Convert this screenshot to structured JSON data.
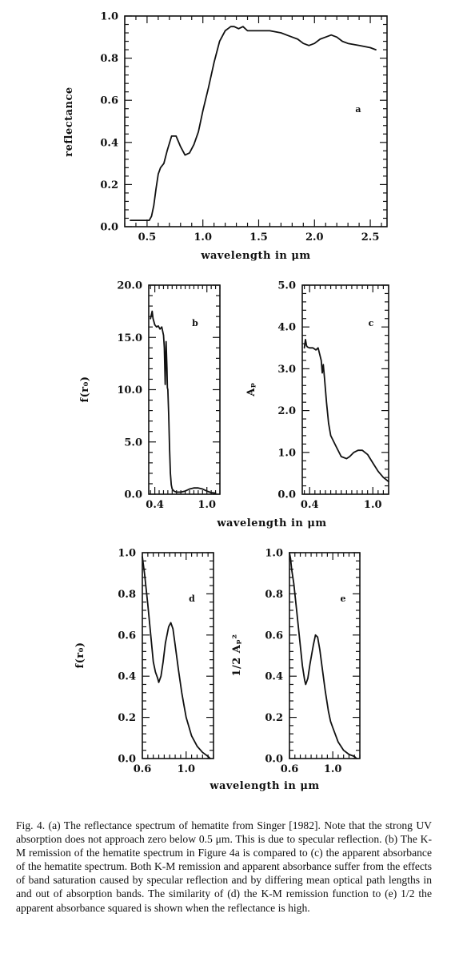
{
  "caption": {
    "text": "Fig. 4.   (a) The reflectance spectrum of hematite from Singer [1982]. Note that the strong UV absorption does not approach zero below 0.5 μm. This is due to specular reflection. (b) The K-M remission of the hematite spectrum in Figure 4a is compared to (c) the apparent absorbance of the hematite spectrum. Both K-M remission and apparent absorbance suffer from the effects of band saturation caused by specular reflection and by differing mean optical path lengths in and out of absorption bands. The similarity of (d) the K-M remission function to (e) 1/2 the apparent absorbance squared is shown when the reflectance is high."
  },
  "chart_data": [
    {
      "id": "a",
      "type": "line",
      "panel_label": "a",
      "xlabel": "wavelength  in  μm",
      "ylabel": "reflectance",
      "xlim": [
        0.3,
        2.65
      ],
      "ylim": [
        0.0,
        1.0
      ],
      "xticks": [
        "0.5",
        "1.0",
        "1.5",
        "2.0",
        "2.5"
      ],
      "yticks": [
        "0.0",
        "0.2",
        "0.4",
        "0.6",
        "0.8",
        "1.0"
      ],
      "series": [
        {
          "x": [
            0.35,
            0.45,
            0.52,
            0.54,
            0.56,
            0.58,
            0.6,
            0.62,
            0.65,
            0.68,
            0.72,
            0.76,
            0.8,
            0.84,
            0.88,
            0.92,
            0.96,
            1.0,
            1.05,
            1.1,
            1.15,
            1.2,
            1.25,
            1.28,
            1.32,
            1.36,
            1.4,
            1.45,
            1.5,
            1.6,
            1.7,
            1.75,
            1.8,
            1.85,
            1.9,
            1.95,
            2.0,
            2.05,
            2.1,
            2.15,
            2.2,
            2.25,
            2.3,
            2.4,
            2.5,
            2.55
          ],
          "y": [
            0.03,
            0.03,
            0.03,
            0.05,
            0.1,
            0.18,
            0.25,
            0.28,
            0.3,
            0.36,
            0.43,
            0.43,
            0.38,
            0.34,
            0.35,
            0.39,
            0.45,
            0.55,
            0.66,
            0.78,
            0.88,
            0.93,
            0.95,
            0.95,
            0.94,
            0.95,
            0.93,
            0.93,
            0.93,
            0.93,
            0.92,
            0.91,
            0.9,
            0.89,
            0.87,
            0.86,
            0.87,
            0.89,
            0.9,
            0.91,
            0.9,
            0.88,
            0.87,
            0.86,
            0.85,
            0.84
          ]
        }
      ]
    },
    {
      "id": "b",
      "type": "line",
      "panel_label": "b",
      "xlabel": "wavelength  in  μm",
      "ylabel": "f(r₀)",
      "xlim": [
        0.33,
        1.15
      ],
      "ylim": [
        0.0,
        20.0
      ],
      "xticks": [
        "0.4",
        "1.0"
      ],
      "yticks": [
        "0.0",
        "5.0",
        "10.0",
        "15.0",
        "20.0"
      ],
      "series": [
        {
          "x": [
            0.35,
            0.37,
            0.38,
            0.4,
            0.42,
            0.44,
            0.46,
            0.48,
            0.5,
            0.51,
            0.52,
            0.53,
            0.54,
            0.545,
            0.55,
            0.56,
            0.57,
            0.58,
            0.59,
            0.6,
            0.62,
            0.65,
            0.7,
            0.75,
            0.8,
            0.85,
            0.9,
            0.95,
            1.0,
            1.05,
            1.1
          ],
          "y": [
            16.8,
            17.5,
            16.8,
            16.2,
            16.0,
            16.1,
            15.8,
            16.0,
            15.2,
            14.0,
            10.5,
            14.6,
            12.0,
            10.2,
            10.0,
            7.5,
            4.5,
            2.0,
            0.9,
            0.5,
            0.3,
            0.2,
            0.2,
            0.3,
            0.5,
            0.6,
            0.6,
            0.5,
            0.3,
            0.15,
            0.1
          ]
        }
      ]
    },
    {
      "id": "c",
      "type": "line",
      "panel_label": "c",
      "xlabel": "",
      "ylabel": "Aₚ",
      "xlim": [
        0.33,
        1.15
      ],
      "ylim": [
        0.0,
        5.0
      ],
      "xticks": [
        "0.4",
        "1.0"
      ],
      "yticks": [
        "0.0",
        "1.0",
        "2.0",
        "3.0",
        "4.0",
        "5.0"
      ],
      "series": [
        {
          "x": [
            0.35,
            0.36,
            0.37,
            0.38,
            0.4,
            0.43,
            0.46,
            0.48,
            0.5,
            0.51,
            0.52,
            0.53,
            0.54,
            0.55,
            0.56,
            0.58,
            0.6,
            0.65,
            0.7,
            0.75,
            0.78,
            0.82,
            0.86,
            0.9,
            0.95,
            1.0,
            1.05,
            1.1,
            1.15
          ],
          "y": [
            3.5,
            3.7,
            3.55,
            3.52,
            3.5,
            3.5,
            3.45,
            3.5,
            3.3,
            3.2,
            2.9,
            3.1,
            2.8,
            2.5,
            2.2,
            1.7,
            1.4,
            1.15,
            0.9,
            0.85,
            0.9,
            1.0,
            1.05,
            1.05,
            0.95,
            0.75,
            0.55,
            0.4,
            0.3
          ]
        }
      ]
    },
    {
      "id": "d",
      "type": "line",
      "panel_label": "d",
      "xlabel": "wavelength  in  μm",
      "ylabel": "f(r₀)",
      "xlim": [
        0.6,
        1.25
      ],
      "ylim": [
        0.0,
        1.0
      ],
      "xticks": [
        "0.6",
        "1.0"
      ],
      "yticks": [
        "0.0",
        "0.2",
        "0.4",
        "0.6",
        "0.8",
        "1.0"
      ],
      "series": [
        {
          "x": [
            0.6,
            0.62,
            0.65,
            0.68,
            0.7,
            0.72,
            0.74,
            0.75,
            0.77,
            0.79,
            0.81,
            0.84,
            0.86,
            0.88,
            0.9,
            0.93,
            0.96,
            0.98,
            1.0,
            1.05,
            1.1,
            1.15,
            1.2,
            1.22
          ],
          "y": [
            0.98,
            0.9,
            0.75,
            0.58,
            0.47,
            0.42,
            0.39,
            0.37,
            0.4,
            0.47,
            0.56,
            0.64,
            0.66,
            0.63,
            0.55,
            0.43,
            0.32,
            0.26,
            0.2,
            0.11,
            0.06,
            0.03,
            0.01,
            0.0
          ]
        }
      ]
    },
    {
      "id": "e",
      "type": "line",
      "panel_label": "e",
      "xlabel": "",
      "ylabel": "1/2 Aₚ²",
      "xlim": [
        0.6,
        1.25
      ],
      "ylim": [
        0.0,
        1.0
      ],
      "xticks": [
        "0.6",
        "1.0"
      ],
      "yticks": [
        "0.0",
        "0.2",
        "0.4",
        "0.6",
        "0.8",
        "1.0"
      ],
      "series": [
        {
          "x": [
            0.6,
            0.61,
            0.62,
            0.64,
            0.67,
            0.7,
            0.72,
            0.74,
            0.75,
            0.77,
            0.79,
            0.82,
            0.84,
            0.86,
            0.88,
            0.9,
            0.93,
            0.96,
            0.98,
            1.0,
            1.05,
            1.1,
            1.15,
            1.2,
            1.22
          ],
          "y": [
            1.0,
            0.97,
            0.92,
            0.85,
            0.7,
            0.55,
            0.45,
            0.38,
            0.36,
            0.39,
            0.46,
            0.55,
            0.6,
            0.59,
            0.53,
            0.45,
            0.33,
            0.23,
            0.18,
            0.15,
            0.08,
            0.04,
            0.02,
            0.01,
            0.0
          ]
        }
      ]
    }
  ]
}
